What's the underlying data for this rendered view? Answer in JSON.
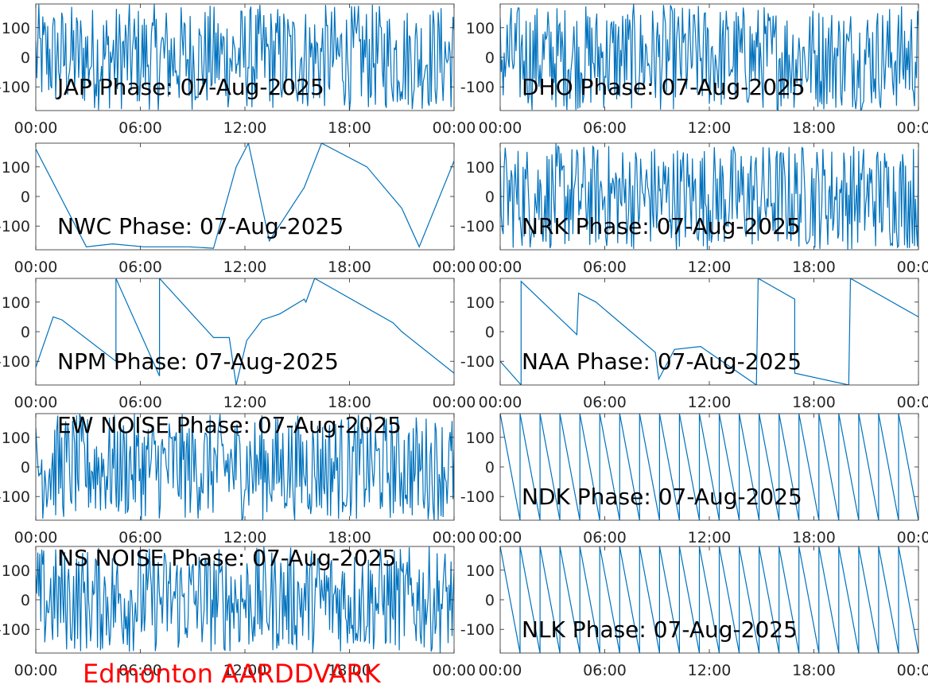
{
  "footer": "Edmonton AARDDVARK",
  "series_color": "#0072bd",
  "chart_data": [
    {
      "type": "line",
      "title": "JAP Phase: 07-Aug-2025",
      "xticks": [
        "00:00",
        "06:00",
        "12:00",
        "18:00",
        "00:00"
      ],
      "yticks": [
        "100",
        "0",
        "-100"
      ],
      "xlim": [
        0,
        24
      ],
      "ylim": [
        -180,
        180
      ],
      "series": [
        {
          "style": "noise",
          "x": [
            0,
            24
          ],
          "y": [
            -180,
            180
          ]
        }
      ]
    },
    {
      "type": "line",
      "title": "DHO Phase: 07-Aug-2025",
      "xticks": [
        "00:00",
        "06:00",
        "12:00",
        "18:00",
        "00:00"
      ],
      "yticks": [
        "100",
        "0",
        "-100"
      ],
      "xlim": [
        0,
        24
      ],
      "ylim": [
        -180,
        180
      ],
      "series": [
        {
          "style": "noise",
          "x": [
            0,
            24
          ],
          "y": [
            -180,
            180
          ]
        }
      ]
    },
    {
      "type": "line",
      "title": "NWC Phase: 07-Aug-2025",
      "xticks": [
        "00:00",
        "06:00",
        "12:00",
        "18:00",
        "00:00"
      ],
      "yticks": [
        "100",
        "0",
        "-100"
      ],
      "xlim": [
        0,
        24
      ],
      "ylim": [
        -180,
        180
      ],
      "series": [
        {
          "style": "wrap",
          "x": [
            0,
            2.9,
            4.4,
            6.2,
            7.6,
            8.8,
            10.2,
            11.5,
            12.2,
            13.4,
            15.4,
            16.4,
            19,
            21,
            22,
            24
          ],
          "y": [
            160,
            -170,
            -160,
            -170,
            -170,
            -170,
            -175,
            100,
            180,
            -150,
            30,
            180,
            100,
            -40,
            -170,
            120
          ]
        }
      ]
    },
    {
      "type": "line",
      "title": "NRK Phase: 07-Aug-2025",
      "xticks": [
        "00:00",
        "06:00",
        "12:00",
        "18:00",
        "00:00"
      ],
      "yticks": [
        "100",
        "0",
        "-100"
      ],
      "xlim": [
        0,
        24
      ],
      "ylim": [
        -180,
        180
      ],
      "series": [
        {
          "style": "noise",
          "x": [
            0,
            24
          ],
          "y": [
            -180,
            180
          ]
        }
      ]
    },
    {
      "type": "line",
      "title": "NPM Phase: 07-Aug-2025",
      "xticks": [
        "00:00",
        "06:00",
        "12:00",
        "18:00",
        "00:00"
      ],
      "yticks": [
        "100",
        "0",
        "-100"
      ],
      "xlim": [
        0,
        24
      ],
      "ylim": [
        -180,
        180
      ],
      "series": [
        {
          "style": "wrap",
          "x": [
            0,
            1,
            1.5,
            4.6,
            4.6,
            7.1,
            7.1,
            10.2,
            11.1,
            11.5,
            12.1,
            13,
            14,
            15.4,
            15.5,
            16,
            20.5,
            21,
            24
          ],
          "y": [
            -120,
            50,
            40,
            -100,
            180,
            -150,
            180,
            -20,
            -20,
            -180,
            -30,
            40,
            60,
            110,
            100,
            180,
            30,
            0,
            -140
          ]
        }
      ]
    },
    {
      "type": "line",
      "title": "NAA Phase: 07-Aug-2025",
      "xticks": [
        "00:00",
        "06:00",
        "12:00",
        "18:00",
        "00:00"
      ],
      "yticks": [
        "100",
        "0",
        "-100"
      ],
      "xlim": [
        0,
        24
      ],
      "ylim": [
        -180,
        180
      ],
      "series": [
        {
          "style": "wrap",
          "x": [
            0,
            1.2,
            1.2,
            4.4,
            4.5,
            5.5,
            8.9,
            9.1,
            10,
            11.5,
            14.7,
            14.8,
            16.9,
            16.9,
            20,
            20.1,
            24
          ],
          "y": [
            -100,
            -180,
            170,
            -10,
            130,
            100,
            -70,
            -160,
            -60,
            -50,
            -180,
            180,
            110,
            -140,
            -180,
            180,
            50
          ]
        }
      ]
    },
    {
      "type": "line",
      "title": "EW NOISE Phase: 07-Aug-2025",
      "xticks": [
        "00:00",
        "06:00",
        "12:00",
        "18:00",
        "00:00"
      ],
      "yticks": [
        "100",
        "0",
        "-100"
      ],
      "xlim": [
        0,
        24
      ],
      "ylim": [
        -180,
        180
      ],
      "series": [
        {
          "style": "noise",
          "x": [
            0,
            24
          ],
          "y": [
            -180,
            180
          ]
        }
      ]
    },
    {
      "type": "line",
      "title": "NDK Phase: 07-Aug-2025",
      "xticks": [
        "00:00",
        "06:00",
        "12:00",
        "18:00",
        "00:00"
      ],
      "yticks": [
        "100",
        "0",
        "-100"
      ],
      "xlim": [
        0,
        24
      ],
      "ylim": [
        -180,
        180
      ],
      "series": [
        {
          "style": "sawtooth",
          "x": [
            0,
            24
          ],
          "y": [
            180,
            -180
          ]
        }
      ]
    },
    {
      "type": "line",
      "title": "NS NOISE Phase: 07-Aug-2025",
      "xticks": [
        "00:00",
        "06:00",
        "12:00",
        "18:00",
        "00:00"
      ],
      "yticks": [
        "100",
        "0",
        "-100"
      ],
      "xlim": [
        0,
        24
      ],
      "ylim": [
        -180,
        180
      ],
      "series": [
        {
          "style": "noise",
          "x": [
            0,
            24
          ],
          "y": [
            -180,
            180
          ]
        }
      ]
    },
    {
      "type": "line",
      "title": "NLK Phase: 07-Aug-2025",
      "xticks": [
        "00:00",
        "06:00",
        "12:00",
        "18:00",
        "00:00"
      ],
      "yticks": [
        "100",
        "0",
        "-100"
      ],
      "xlim": [
        0,
        24
      ],
      "ylim": [
        -180,
        180
      ],
      "series": [
        {
          "style": "sawtooth",
          "x": [
            0,
            24
          ],
          "y": [
            180,
            -180
          ]
        }
      ]
    }
  ]
}
